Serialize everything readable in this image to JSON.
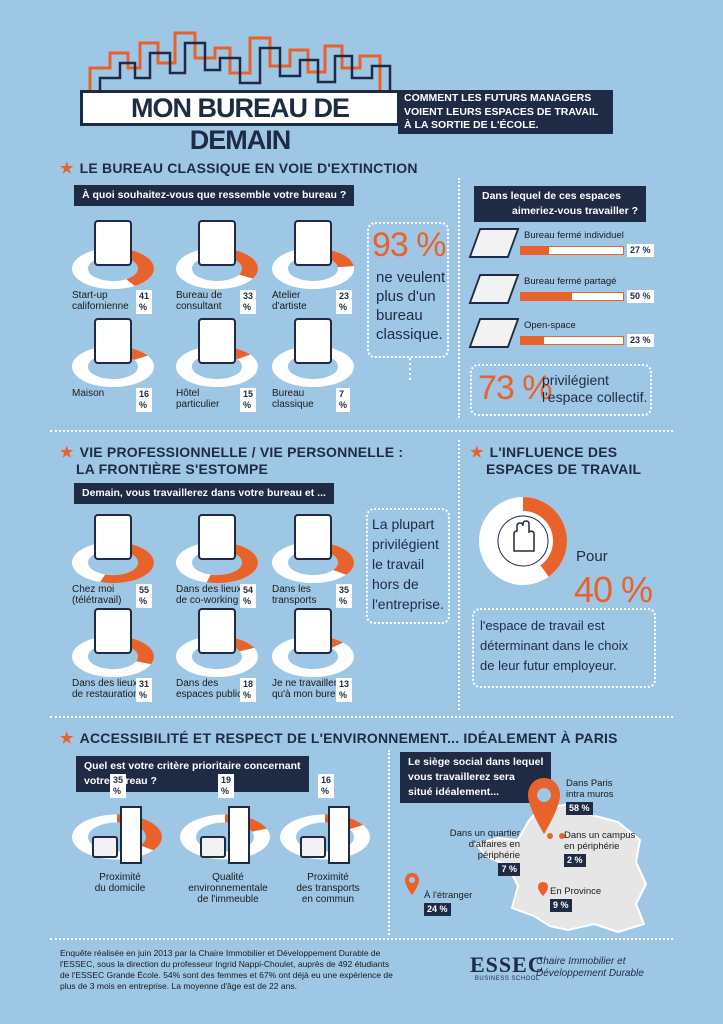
{
  "header": {
    "title": "MON BUREAU DE DEMAIN",
    "subtitle_lines": [
      "COMMENT LES FUTURS MANAGERS",
      "VOIENT LEURS ESPACES DE TRAVAIL",
      "À LA SORTIE DE L'ÉCOLE."
    ]
  },
  "section1": {
    "title": "LE BUREAU CLASSIQUE EN VOIE D'EXTINCTION",
    "question": "À quoi souhaitez-vous que ressemble votre bureau ?",
    "items": [
      {
        "label_lines": [
          "Start-up",
          "californienne"
        ],
        "pct": "41 %",
        "value": 41
      },
      {
        "label_lines": [
          "Bureau de",
          "consultant"
        ],
        "pct": "33 %",
        "value": 33
      },
      {
        "label_lines": [
          "Atelier",
          "d'artiste"
        ],
        "pct": "23 %",
        "value": 23
      },
      {
        "label_lines": [
          "Maison"
        ],
        "pct": "16 %",
        "value": 16
      },
      {
        "label_lines": [
          "Hôtel",
          "particulier"
        ],
        "pct": "15 %",
        "value": 15
      },
      {
        "label_lines": [
          "Bureau",
          "classique"
        ],
        "pct": "7 %",
        "value": 7
      }
    ],
    "big_stat": "93 %",
    "big_stat_text": [
      "ne veulent",
      "plus d'un",
      "bureau",
      "classique."
    ],
    "right_question_lines": [
      "Dans lequel de ces espaces",
      "aimeriez-vous travailler ?"
    ],
    "spaces": [
      {
        "label": "Bureau fermé individuel",
        "pct": "27 %",
        "value": 27
      },
      {
        "label": "Bureau fermé partagé",
        "pct": "50 %",
        "value": 50
      },
      {
        "label": "Open-space",
        "pct": "23 %",
        "value": 23
      }
    ],
    "collective_stat": "73 %",
    "collective_text": [
      "privilégient",
      "l'espace collectif."
    ]
  },
  "section2": {
    "title_lines": [
      "VIE PROFESSIONNELLE / VIE PERSONNELLE :",
      "LA FRONTIÈRE S'ESTOMPE"
    ],
    "question": "Demain, vous travaillerez dans votre bureau et ...",
    "items": [
      {
        "label_lines": [
          "Chez moi",
          "(télétravail)"
        ],
        "pct": "55 %",
        "value": 55
      },
      {
        "label_lines": [
          "Dans des lieux",
          "de co-working"
        ],
        "pct": "54 %",
        "value": 54
      },
      {
        "label_lines": [
          "Dans les",
          "transports"
        ],
        "pct": "35 %",
        "value": 35
      },
      {
        "label_lines": [
          "Dans des lieux",
          "de restauration"
        ],
        "pct": "31 %",
        "value": 31
      },
      {
        "label_lines": [
          "Dans des",
          "espaces publics"
        ],
        "pct": "18 %",
        "value": 18
      },
      {
        "label_lines": [
          "Je ne travaillerai",
          "qu'à mon bureau"
        ],
        "pct": "13 %",
        "value": 13
      }
    ],
    "note_lines": [
      "La plupart",
      "privilégient",
      "le travail",
      "hors de",
      "l'entreprise."
    ]
  },
  "section3": {
    "title_lines": [
      "L'INFLUENCE DES",
      "ESPACES DE TRAVAIL"
    ],
    "pour": "Pour",
    "stat": "40 %",
    "value": 40,
    "text_lines": [
      "l'espace de travail est",
      "déterminant dans le choix",
      "de leur futur employeur."
    ]
  },
  "section4": {
    "title": "ACCESSIBILITÉ ET RESPECT DE L'ENVIRONNEMENT... IDÉALEMENT À PARIS",
    "question_lines": [
      "Quel est votre critère prioritaire concernant",
      "votre bureau ?"
    ],
    "criteria": [
      {
        "label_lines": [
          "Proximité",
          "du domicile"
        ],
        "pct": "35 %",
        "value": 35
      },
      {
        "label_lines": [
          "Qualité",
          "environnementale",
          "de l'immeuble"
        ],
        "pct": "19 %",
        "value": 19
      },
      {
        "label_lines": [
          "Proximité",
          "des transports",
          "en commun"
        ],
        "pct": "16 %",
        "value": 16
      }
    ],
    "map_question_lines": [
      "Le siège social dans lequel",
      "vous travaillerez sera",
      "situé idéalement..."
    ],
    "locations": [
      {
        "label_lines": [
          "Dans Paris",
          "intra muros"
        ],
        "pct": "58 %"
      },
      {
        "label_lines": [
          "Dans un quartier",
          "d'affaires en",
          "périphérie"
        ],
        "pct": "7 %"
      },
      {
        "label_lines": [
          "Dans un campus",
          "en périphérie"
        ],
        "pct": "2 %"
      },
      {
        "label_lines": [
          "À l'étranger"
        ],
        "pct": "24 %"
      },
      {
        "label_lines": [
          "En Province"
        ],
        "pct": "9 %"
      }
    ]
  },
  "footer": {
    "lines": [
      "Enquête réalisée en juin 2013 par la Chaire Immobilier et Développement Durable de",
      "l'ESSEC, sous la direction du professeur Ingrid Nappi-Choulet, auprès de 492 étudiants",
      "de l'ESSEC Grande École. 54% sont des femmes et 67% ont déjà eu une expérience de",
      "plus de 3 mois en entreprise. La moyenne d'âge est de 22 ans."
    ],
    "logo": "ESSEC",
    "logo_sub": "BUSINESS SCHOOL",
    "chair_lines": [
      "Chaire Immobilier et",
      "Développement Durable"
    ]
  },
  "colors": {
    "background": "#9ec7e6",
    "navy": "#1f2a44",
    "accent": "#e8622c",
    "white": "#ffffff"
  }
}
